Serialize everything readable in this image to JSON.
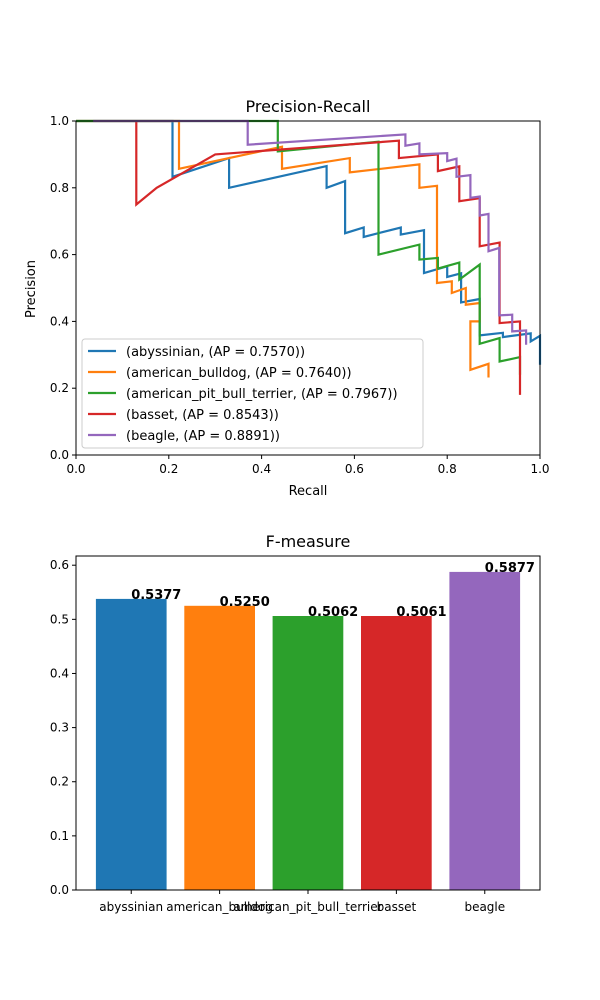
{
  "chart_data": [
    {
      "type": "line",
      "title": "Precision-Recall",
      "xlabel": "Recall",
      "ylabel": "Precision",
      "xlim": [
        0.0,
        1.0
      ],
      "ylim": [
        0.0,
        1.0
      ],
      "xticks": [
        "0.0",
        "0.2",
        "0.4",
        "0.6",
        "0.8",
        "1.0"
      ],
      "yticks": [
        "0.0",
        "0.2",
        "0.4",
        "0.6",
        "0.8",
        "1.0"
      ],
      "legend_position": "lower-left",
      "series": [
        {
          "name": "(abyssinian, (AP = 0.7570))",
          "color": "#1f77b4",
          "points": [
            [
              0.0,
              1.0
            ],
            [
              0.208,
              1.0
            ],
            [
              0.208,
              0.833
            ],
            [
              0.33,
              0.889
            ],
            [
              0.33,
              0.8
            ],
            [
              0.54,
              0.865
            ],
            [
              0.54,
              0.8
            ],
            [
              0.58,
              0.82
            ],
            [
              0.58,
              0.664
            ],
            [
              0.62,
              0.681
            ],
            [
              0.62,
              0.653
            ],
            [
              0.7,
              0.681
            ],
            [
              0.7,
              0.66
            ],
            [
              0.75,
              0.673
            ],
            [
              0.75,
              0.545
            ],
            [
              0.8,
              0.565
            ],
            [
              0.8,
              0.533
            ],
            [
              0.83,
              0.544
            ],
            [
              0.83,
              0.457
            ],
            [
              0.87,
              0.467
            ],
            [
              0.87,
              0.358
            ],
            [
              0.92,
              0.366
            ],
            [
              0.92,
              0.353
            ],
            [
              0.98,
              0.364
            ],
            [
              0.98,
              0.34
            ],
            [
              1.0,
              0.357
            ],
            [
              1.0,
              0.27
            ]
          ]
        },
        {
          "name": "(american_bulldog, (AP = 0.7640))",
          "color": "#ff7f0e",
          "points": [
            [
              0.0,
              1.0
            ],
            [
              0.222,
              1.0
            ],
            [
              0.222,
              0.857
            ],
            [
              0.444,
              0.923
            ],
            [
              0.444,
              0.857
            ],
            [
              0.59,
              0.889
            ],
            [
              0.59,
              0.846
            ],
            [
              0.74,
              0.87
            ],
            [
              0.74,
              0.8
            ],
            [
              0.778,
              0.806
            ],
            [
              0.778,
              0.515
            ],
            [
              0.81,
              0.52
            ],
            [
              0.81,
              0.485
            ],
            [
              0.84,
              0.5
            ],
            [
              0.84,
              0.45
            ],
            [
              0.87,
              0.455
            ],
            [
              0.87,
              0.4
            ],
            [
              0.85,
              0.4
            ],
            [
              0.85,
              0.255
            ],
            [
              0.889,
              0.273
            ],
            [
              0.889,
              0.232
            ]
          ]
        },
        {
          "name": "(american_pit_bull_terrier, (AP = 0.7967))",
          "color": "#2ca02c",
          "points": [
            [
              0.0,
              1.0
            ],
            [
              0.435,
              1.0
            ],
            [
              0.435,
              0.909
            ],
            [
              0.652,
              0.938
            ],
            [
              0.652,
              0.6
            ],
            [
              0.74,
              0.63
            ],
            [
              0.74,
              0.585
            ],
            [
              0.78,
              0.59
            ],
            [
              0.78,
              0.558
            ],
            [
              0.826,
              0.576
            ],
            [
              0.826,
              0.525
            ],
            [
              0.87,
              0.57
            ],
            [
              0.87,
              0.333
            ],
            [
              0.913,
              0.35
            ],
            [
              0.913,
              0.28
            ],
            [
              0.957,
              0.293
            ],
            [
              0.957,
              0.24
            ]
          ]
        },
        {
          "name": "(basset, (AP = 0.8543))",
          "color": "#d62728",
          "points": [
            [
              0.13,
              1.0
            ],
            [
              0.13,
              0.75
            ],
            [
              0.174,
              0.8
            ],
            [
              0.3,
              0.9
            ],
            [
              0.696,
              0.941
            ],
            [
              0.696,
              0.889
            ],
            [
              0.78,
              0.9
            ],
            [
              0.78,
              0.85
            ],
            [
              0.826,
              0.864
            ],
            [
              0.826,
              0.76
            ],
            [
              0.87,
              0.769
            ],
            [
              0.87,
              0.625
            ],
            [
              0.913,
              0.636
            ],
            [
              0.913,
              0.395
            ],
            [
              0.957,
              0.4
            ],
            [
              0.957,
              0.18
            ]
          ]
        },
        {
          "name": "(beagle, (AP = 0.8891))",
          "color": "#9467bd",
          "points": [
            [
              0.037,
              1.0
            ],
            [
              0.37,
              1.0
            ],
            [
              0.37,
              0.929
            ],
            [
              0.71,
              0.96
            ],
            [
              0.71,
              0.926
            ],
            [
              0.74,
              0.933
            ],
            [
              0.74,
              0.9
            ],
            [
              0.8,
              0.904
            ],
            [
              0.8,
              0.88
            ],
            [
              0.82,
              0.887
            ],
            [
              0.82,
              0.833
            ],
            [
              0.85,
              0.838
            ],
            [
              0.85,
              0.77
            ],
            [
              0.87,
              0.774
            ],
            [
              0.87,
              0.717
            ],
            [
              0.889,
              0.722
            ],
            [
              0.889,
              0.61
            ],
            [
              0.912,
              0.62
            ],
            [
              0.912,
              0.418
            ],
            [
              0.94,
              0.42
            ],
            [
              0.94,
              0.37
            ],
            [
              0.97,
              0.373
            ],
            [
              0.97,
              0.33
            ]
          ]
        }
      ]
    },
    {
      "type": "bar",
      "title": "F-measure",
      "categories": [
        "abyssinian",
        "american_bulldog",
        "american_pit_bull_terrier",
        "basset",
        "beagle"
      ],
      "values": [
        0.5377,
        0.525,
        0.5062,
        0.5061,
        0.5877
      ],
      "value_labels": [
        "0.5377",
        "0.5250",
        "0.5062",
        "0.5061",
        "0.5877"
      ],
      "colors": [
        "#1f77b4",
        "#ff7f0e",
        "#2ca02c",
        "#d62728",
        "#9467bd"
      ],
      "ylim": [
        0.0,
        0.617
      ],
      "yticks": [
        "0.0",
        "0.1",
        "0.2",
        "0.3",
        "0.4",
        "0.5",
        "0.6"
      ]
    }
  ]
}
